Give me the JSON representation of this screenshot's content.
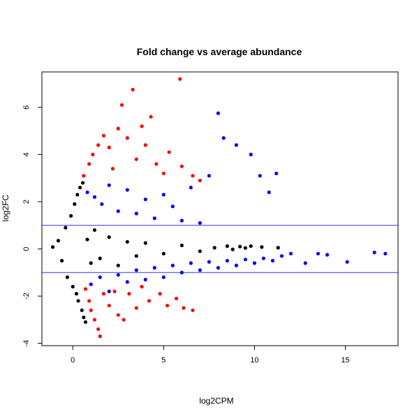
{
  "chart_data": {
    "type": "scatter",
    "title": "Fold change vs average abundance",
    "xlabel": "log2CPM",
    "ylabel": "log2FC",
    "xlim": [
      -1.7,
      17.9
    ],
    "ylim": [
      -4.1,
      7.5
    ],
    "x_ticks": [
      0,
      5,
      10,
      15
    ],
    "y_ticks": [
      -4,
      -2,
      0,
      2,
      4,
      6
    ],
    "grid": false,
    "legend": "none",
    "hlines": [
      {
        "y": 1,
        "color": "#3333ff"
      },
      {
        "y": -1,
        "color": "#3333ff"
      }
    ],
    "series": [
      {
        "color": "#000000",
        "points": [
          [
            -1.1,
            0.08
          ],
          [
            -0.8,
            0.35
          ],
          [
            -0.6,
            -0.5
          ],
          [
            -0.4,
            0.9
          ],
          [
            -0.3,
            -1.2
          ],
          [
            -0.1,
            1.4
          ],
          [
            0,
            -1.6
          ],
          [
            0.1,
            1.9
          ],
          [
            0.2,
            -1.9
          ],
          [
            0.25,
            2.3
          ],
          [
            0.3,
            -2.2
          ],
          [
            0.4,
            2.6
          ],
          [
            0.5,
            -2.6
          ],
          [
            0.55,
            2.8
          ],
          [
            0.6,
            -2.9
          ],
          [
            0.7,
            -3.1
          ],
          [
            0.8,
            0.4
          ],
          [
            1,
            -0.6
          ],
          [
            1.2,
            0.8
          ],
          [
            1.5,
            -0.4
          ],
          [
            2,
            0.5
          ],
          [
            2.5,
            -0.7
          ],
          [
            3,
            0.3
          ],
          [
            3.5,
            -0.3
          ],
          [
            4,
            0.25
          ],
          [
            5,
            -0.2
          ],
          [
            6,
            0.15
          ],
          [
            7,
            -0.1
          ],
          [
            7.8,
            0.05
          ],
          [
            8.5,
            0.12
          ],
          [
            9.2,
            0.1
          ],
          [
            9.8,
            0.12
          ],
          [
            10.4,
            0.08
          ],
          [
            11.3,
            0.05
          ],
          [
            8.8,
            -0.02
          ],
          [
            9.5,
            0.04
          ]
        ]
      },
      {
        "color": "#0000ff",
        "points": [
          [
            0.8,
            2.4
          ],
          [
            1.2,
            2.2
          ],
          [
            1.6,
            1.9
          ],
          [
            2,
            2.7
          ],
          [
            2.5,
            1.6
          ],
          [
            3,
            2.5
          ],
          [
            3.5,
            1.5
          ],
          [
            4,
            2.1
          ],
          [
            4.5,
            1.3
          ],
          [
            5,
            2.3
          ],
          [
            5.5,
            1.8
          ],
          [
            6,
            1.2
          ],
          [
            6.5,
            2.6
          ],
          [
            7,
            1.1
          ],
          [
            7.5,
            3.1
          ],
          [
            8,
            5.75
          ],
          [
            8.3,
            4.7
          ],
          [
            9,
            4.4
          ],
          [
            9.8,
            4
          ],
          [
            10.3,
            3.1
          ],
          [
            11.2,
            3.2
          ],
          [
            10.8,
            2.4
          ],
          [
            1,
            -1.5
          ],
          [
            1.5,
            -1.2
          ],
          [
            2,
            -1.8
          ],
          [
            2.5,
            -1.1
          ],
          [
            3,
            -1.4
          ],
          [
            3.5,
            -0.9
          ],
          [
            4,
            -1.3
          ],
          [
            4.5,
            -0.8
          ],
          [
            5,
            -1.2
          ],
          [
            5.5,
            -0.7
          ],
          [
            6,
            -1
          ],
          [
            6.5,
            -0.6
          ],
          [
            7,
            -0.9
          ],
          [
            7.5,
            -0.55
          ],
          [
            8,
            -0.8
          ],
          [
            8.5,
            -0.5
          ],
          [
            9,
            -0.7
          ],
          [
            9.5,
            -0.45
          ],
          [
            10,
            -0.6
          ],
          [
            10.5,
            -0.4
          ],
          [
            11,
            -0.5
          ],
          [
            11.5,
            -0.3
          ],
          [
            12,
            -0.2
          ],
          [
            12.8,
            -0.6
          ],
          [
            13.5,
            -0.2
          ],
          [
            14,
            -0.25
          ],
          [
            15.1,
            -0.55
          ],
          [
            16.6,
            -0.15
          ],
          [
            17.2,
            -0.2
          ]
        ]
      },
      {
        "color": "#ff0000",
        "points": [
          [
            0.6,
            3.1
          ],
          [
            0.9,
            3.6
          ],
          [
            1.1,
            4
          ],
          [
            1.4,
            4.4
          ],
          [
            1.7,
            4.8
          ],
          [
            2,
            4.3
          ],
          [
            2.2,
            3.4
          ],
          [
            2.5,
            5.1
          ],
          [
            2.7,
            6.1
          ],
          [
            3,
            4.7
          ],
          [
            3.3,
            6.75
          ],
          [
            3.5,
            3.8
          ],
          [
            3.8,
            5.2
          ],
          [
            4,
            4.4
          ],
          [
            4.3,
            5.6
          ],
          [
            4.6,
            3.6
          ],
          [
            5,
            3.2
          ],
          [
            5.3,
            4.1
          ],
          [
            5.9,
            7.2
          ],
          [
            6,
            3.5
          ],
          [
            6.6,
            3.1
          ],
          [
            7,
            2.9
          ],
          [
            0.7,
            -1.7
          ],
          [
            0.9,
            -2.2
          ],
          [
            1,
            -2.6
          ],
          [
            1.2,
            -3
          ],
          [
            1.4,
            -3.4
          ],
          [
            1.5,
            -3.7
          ],
          [
            1.7,
            -1.9
          ],
          [
            2,
            -2.4
          ],
          [
            2.3,
            -1.8
          ],
          [
            2.5,
            -2.8
          ],
          [
            2.8,
            -3
          ],
          [
            3.1,
            -1.9
          ],
          [
            3.5,
            -2.5
          ],
          [
            3.8,
            -1.6
          ],
          [
            4.2,
            -2.2
          ],
          [
            4.8,
            -1.9
          ],
          [
            5.2,
            -2.4
          ],
          [
            5.7,
            -2.1
          ],
          [
            6.1,
            -2.5
          ],
          [
            6.6,
            -2.6
          ]
        ]
      }
    ]
  }
}
